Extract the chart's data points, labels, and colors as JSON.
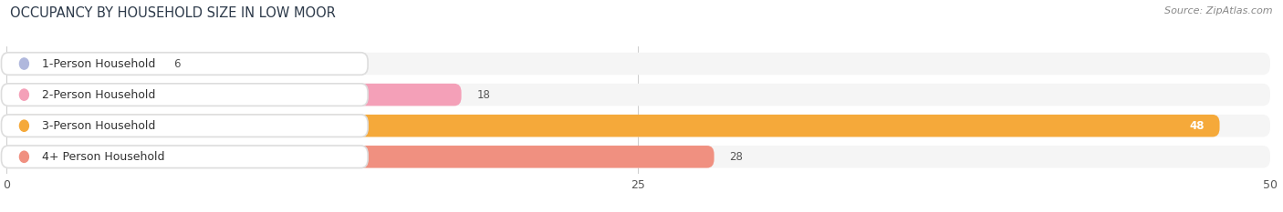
{
  "title": "OCCUPANCY BY HOUSEHOLD SIZE IN LOW MOOR",
  "source": "Source: ZipAtlas.com",
  "categories": [
    "1-Person Household",
    "2-Person Household",
    "3-Person Household",
    "4+ Person Household"
  ],
  "values": [
    6,
    18,
    48,
    28
  ],
  "bar_colors": [
    "#b0b8dd",
    "#f4a0b8",
    "#f5a93a",
    "#f09080"
  ],
  "bar_bg_color": "#ececec",
  "xlim": [
    0,
    50
  ],
  "xticks": [
    0,
    25,
    50
  ],
  "title_fontsize": 10.5,
  "source_fontsize": 8,
  "label_fontsize": 9,
  "value_fontsize": 8.5,
  "background_color": "#ffffff",
  "grid_color": "#cccccc",
  "row_bg_color": "#f5f5f5"
}
